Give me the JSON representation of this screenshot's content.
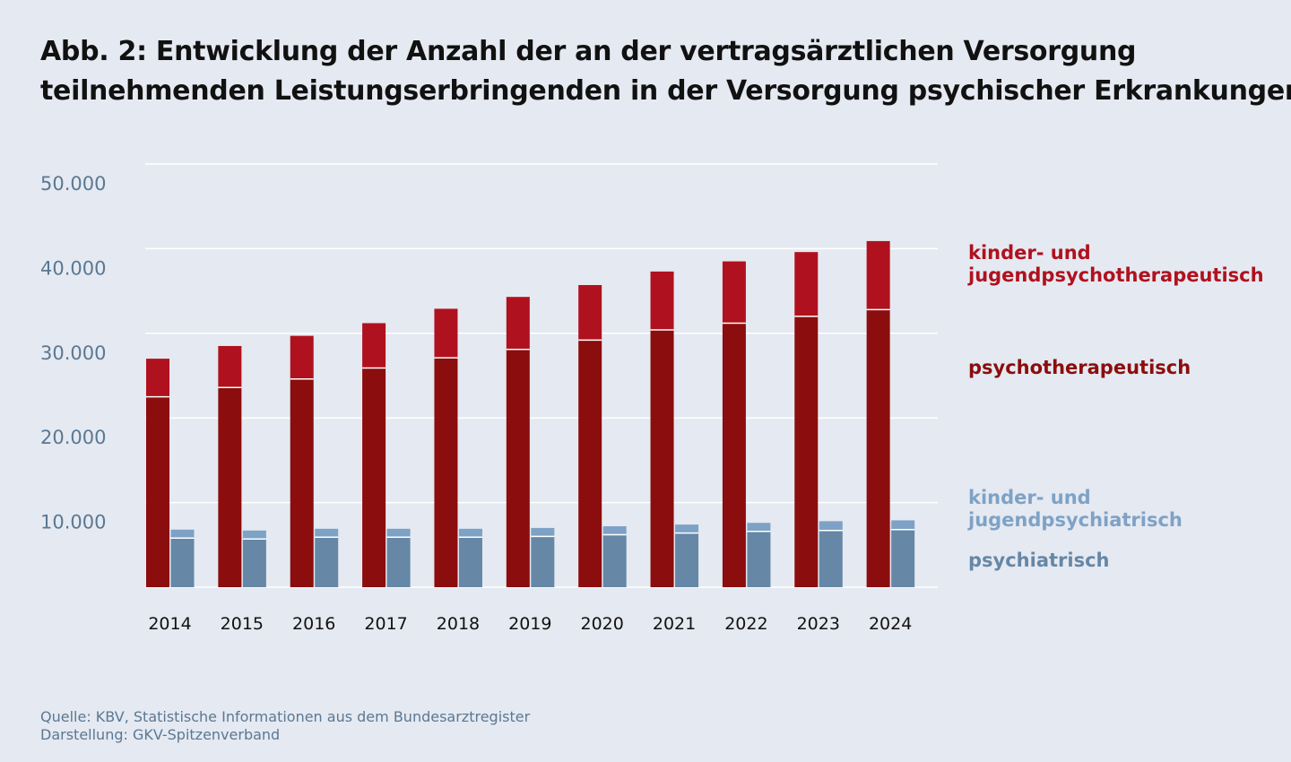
{
  "title": {
    "line1": "Abb. 2: Entwicklung der Anzahl der an der vertragsärztlichen Versorgung",
    "line2": "teilnehmenden Leistungserbringenden in der Versorgung psychischer Erkrankungen"
  },
  "legend": {
    "kjpt": "kinder- und jugendpsychotherapeutisch",
    "kjpt_line1": "kinder- und",
    "kjpt_line2": "jugendpsychotherapeutisch",
    "pt": "psychotherapeutisch",
    "kjp": "kinder- und jugendpsychiatrisch",
    "kjp_line1": "kinder- und",
    "kjp_line2": "jugendpsychiatrisch",
    "p": "psychiatrisch"
  },
  "source": {
    "line1": "Quelle: KBV, Statistische Informationen aus dem Bundesarztregister",
    "line2": "Darstellung: GKV-Spitzenverband"
  },
  "colors": {
    "background": "#e5e9f1",
    "psychotherapeutisch": "#8b0d0d",
    "kinder_jugendpsychotherapeutisch": "#b0111e",
    "psychiatrisch": "#6687a6",
    "kinder_jugendpsychiatrisch": "#7ea2c6",
    "grid": "#ffffff",
    "axis_text": "#5a7893",
    "category_text": "#111111"
  },
  "chart_data": {
    "type": "bar",
    "stacked": true,
    "categories": [
      "2014",
      "2015",
      "2016",
      "2017",
      "2018",
      "2019",
      "2020",
      "2021",
      "2022",
      "2023",
      "2024"
    ],
    "ylim": [
      0,
      50000
    ],
    "yticks": [
      10000,
      20000,
      30000,
      40000,
      50000
    ],
    "ytick_labels": [
      "10.000",
      "20.000",
      "30.000",
      "40.000",
      "50.000"
    ],
    "grid": true,
    "legend_position": "right",
    "groups": [
      {
        "stack": "psychotherapie",
        "series": [
          {
            "name": "psychotherapeutisch",
            "values": [
              22500,
              23600,
              24600,
              25900,
              27100,
              28100,
              29200,
              30400,
              31200,
              32000,
              32800
            ]
          },
          {
            "name": "kinder- und jugendpsychotherapeutisch",
            "values": [
              4500,
              4900,
              5100,
              5300,
              5800,
              6200,
              6500,
              6900,
              7300,
              7600,
              8100
            ]
          }
        ]
      },
      {
        "stack": "psychiatrie",
        "series": [
          {
            "name": "psychiatrisch",
            "values": [
              5800,
              5700,
              5900,
              5900,
              5900,
              6000,
              6200,
              6400,
              6600,
              6700,
              6800
            ]
          },
          {
            "name": "kinder- und jugendpsychiatrisch",
            "values": [
              1000,
              1000,
              1000,
              1000,
              1000,
              1000,
              1000,
              1000,
              1000,
              1100,
              1100
            ]
          }
        ]
      }
    ]
  }
}
